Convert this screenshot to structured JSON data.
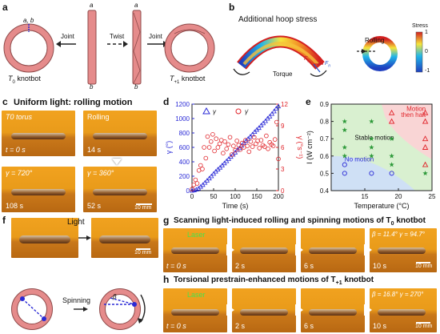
{
  "panel_a": {
    "label": "a",
    "t0_label": "T",
    "t0_sub": "0",
    "t0_rest": " knotbot",
    "t1_label": "T",
    "t1_sub": "+1",
    "t1_rest": " knotbot",
    "joint_left": "Joint",
    "twist": "Twist",
    "joint_right": "Joint",
    "ab_left": "a, b",
    "rod1_top": "a",
    "rod1_bottom": "b",
    "rod2_top": "a",
    "rod2_bottom": "b"
  },
  "panel_b": {
    "label": "b",
    "title": "Additional hoop stress",
    "rolling": "Rolling",
    "torque": "Torque",
    "fc": "F",
    "fc_sub": "c",
    "fn": "F",
    "fn_sub": "n",
    "stress_label": "Stress",
    "stress_ticks": [
      "1",
      "0",
      "-1"
    ]
  },
  "panel_c": {
    "label": "c",
    "title": "Uniform light: rolling motion",
    "frames": [
      {
        "top": "T0 torus",
        "bottom": "t = 0 s"
      },
      {
        "top": "Rolling",
        "bottom": "14 s"
      },
      {
        "top": "γ = 720°",
        "bottom": "108 s"
      },
      {
        "top": "γ = 360°",
        "bottom": "52 s"
      }
    ],
    "scale": "10 mm"
  },
  "panel_d": {
    "label": "d",
    "xlabel": "Time (s)",
    "ylabel_left": "γ (°)",
    "ylabel_right": "γ̇ (°s⁻¹)",
    "legend": [
      "γ",
      "γ̇"
    ],
    "colors": {
      "left": "#2a2ad6",
      "right": "#e0242a"
    }
  },
  "panel_e": {
    "label": "e",
    "xlabel": "Temperature (°C)",
    "ylabel": "I (W cm⁻²)",
    "regions": [
      "No motion",
      "Stable motion",
      "Motion then halt"
    ],
    "colors": {
      "no_motion": "#cfe0f5",
      "stable": "#d9f0d0",
      "halt": "#f9d5d5"
    }
  },
  "panel_f": {
    "label": "f",
    "light": "Light",
    "spinning": "Spinning",
    "beta": "β",
    "scale": "10 mm"
  },
  "panel_g": {
    "label": "g",
    "title": "Scanning light-induced rolling and spinning motions of T",
    "title_sub": "0",
    "title_rest": " knotbot",
    "laser": "Laser",
    "frames": [
      "t = 0 s",
      "2 s",
      "6 s",
      "10 s"
    ],
    "annot": "β = 11.4°   γ = 94.7°",
    "scale": "10 mm"
  },
  "panel_h": {
    "label": "h",
    "title": "Torsional prestrain-enhanced motions of T",
    "title_sub": "+1",
    "title_rest": " knotbot",
    "laser": "Laser",
    "frames": [
      "t = 0 s",
      "2 s",
      "6 s",
      "10 s"
    ],
    "annot": "β = 16.8°   γ = 270°",
    "scale": "10 mm"
  },
  "chart_data": [
    {
      "type": "scatter",
      "title": "",
      "xlabel": "Time (s)",
      "ylabel": "γ (°)",
      "ylabel_right": "γ̇ (°s⁻¹)",
      "xlim": [
        0,
        200
      ],
      "ylim": [
        0,
        1200
      ],
      "ylim_right": [
        0,
        12
      ],
      "xticks": [
        "0",
        "50",
        "100",
        "150",
        "200"
      ],
      "yticks": [
        "0",
        "200",
        "400",
        "600",
        "800",
        "1000",
        "1200"
      ],
      "yticks_right": [
        "0",
        "3",
        "6",
        "9",
        "12"
      ],
      "legend": "top-center",
      "series": [
        {
          "name": "γ",
          "axis": "left",
          "color": "#2a2ad6",
          "x": [
            0,
            5,
            10,
            15,
            20,
            25,
            30,
            35,
            40,
            45,
            50,
            55,
            60,
            65,
            70,
            75,
            80,
            85,
            90,
            95,
            100,
            105,
            110,
            115,
            120,
            125,
            130,
            135,
            140,
            145,
            150,
            155,
            160,
            165,
            170,
            175,
            180,
            185,
            190,
            195,
            200
          ],
          "y": [
            0,
            5,
            15,
            30,
            55,
            80,
            110,
            140,
            170,
            200,
            235,
            265,
            295,
            320,
            350,
            380,
            410,
            440,
            470,
            500,
            530,
            565,
            590,
            625,
            660,
            690,
            720,
            750,
            780,
            815,
            845,
            870,
            905,
            935,
            965,
            1000,
            1030,
            1065,
            1100,
            1140,
            1170
          ]
        },
        {
          "name": "γ̇",
          "axis": "right",
          "color": "#e0242a",
          "x": [
            0,
            4,
            8,
            12,
            16,
            20,
            24,
            28,
            32,
            36,
            40,
            44,
            48,
            52,
            56,
            60,
            64,
            68,
            72,
            76,
            80,
            84,
            88,
            92,
            96,
            100,
            104,
            108,
            112,
            116,
            120,
            124,
            128,
            132,
            136,
            140,
            144,
            148,
            152,
            156,
            160,
            164,
            168,
            172,
            176,
            180,
            184,
            188,
            192,
            196,
            200
          ],
          "y": [
            0.2,
            0.8,
            1.5,
            1.0,
            2.8,
            3.5,
            3.0,
            6.0,
            4.5,
            7.5,
            6.0,
            6.8,
            7.8,
            5.5,
            7.2,
            6.0,
            6.5,
            7.0,
            5.2,
            6.8,
            5.8,
            6.4,
            7.4,
            5.0,
            6.2,
            5.6,
            6.9,
            6.3,
            5.7,
            6.6,
            6.0,
            7.0,
            6.2,
            5.4,
            6.8,
            6.1,
            7.4,
            6.5,
            6.9,
            5.9,
            7.0,
            6.3,
            6.1,
            7.6,
            5.8,
            6.7,
            6.4,
            6.2,
            7.1,
            9.5,
            4.4
          ]
        }
      ]
    },
    {
      "type": "scatter",
      "title": "",
      "xlabel": "Temperature (°C)",
      "ylabel": "I (W cm⁻²)",
      "xlim": [
        10,
        25
      ],
      "ylim": [
        0.4,
        0.9
      ],
      "xticks": [
        "15",
        "20",
        "25"
      ],
      "yticks": [
        "0.4",
        "0.5",
        "0.6",
        "0.7",
        "0.8",
        "0.9"
      ],
      "series": [
        {
          "name": "No motion",
          "marker": "circle",
          "color": "#2a2ad6",
          "x": [
            12,
            12,
            16,
            19
          ],
          "y": [
            0.5,
            0.55,
            0.5,
            0.5
          ]
        },
        {
          "name": "Stable motion",
          "marker": "star",
          "color": "#2e9a3a",
          "x": [
            12,
            12,
            12,
            12,
            16,
            16,
            16,
            16,
            19,
            19,
            19,
            24
          ],
          "y": [
            0.6,
            0.65,
            0.75,
            0.8,
            0.6,
            0.65,
            0.7,
            0.8,
            0.55,
            0.6,
            0.7,
            0.5
          ]
        },
        {
          "name": "Motion then halt",
          "marker": "triangle",
          "color": "#e0242a",
          "x": [
            19,
            19,
            24,
            24,
            24,
            24,
            24
          ],
          "y": [
            0.8,
            0.85,
            0.55,
            0.65,
            0.7,
            0.8,
            0.85
          ]
        }
      ]
    }
  ]
}
